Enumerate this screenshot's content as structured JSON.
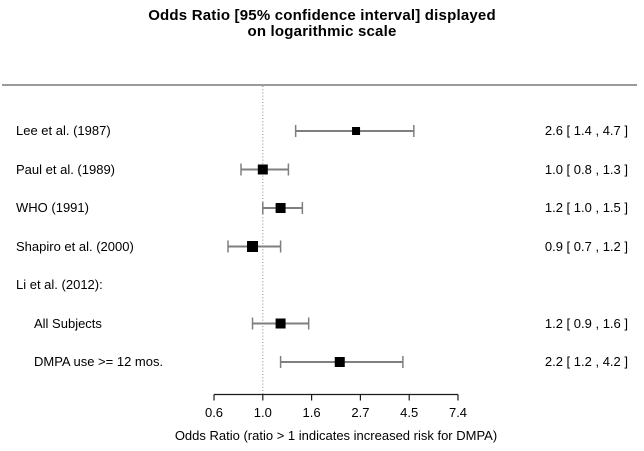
{
  "title": {
    "line1": "Odds Ratio [95% confidence interval] displayed",
    "line2": "on logarithmic scale"
  },
  "chart_data": {
    "type": "scatter",
    "subtype": "forest-plot",
    "scale": "log",
    "title": "Odds Ratio [95% confidence interval] displayed on logarithmic scale",
    "xlabel": "Odds Ratio (ratio > 1 indicates increased risk for DMPA)",
    "reference_line": 1.0,
    "x_range_ln": [
      -0.5,
      2.0
    ],
    "x_ticks": [
      {
        "label": "0.6",
        "ln": -0.5
      },
      {
        "label": "1.0",
        "ln": 0.0
      },
      {
        "label": "1.6",
        "ln": 0.5
      },
      {
        "label": "2.7",
        "ln": 1.0
      },
      {
        "label": "4.5",
        "ln": 1.5
      },
      {
        "label": "7.4",
        "ln": 2.0
      }
    ],
    "rows": [
      {
        "label": "Lee et al. (1987)",
        "indent": false,
        "header": false,
        "or": 2.6,
        "ci_low": 1.4,
        "ci_high": 4.7,
        "display": "2.6 [ 1.4 , 4.7 ]",
        "box": 8
      },
      {
        "label": "Paul et al. (1989)",
        "indent": false,
        "header": false,
        "or": 1.0,
        "ci_low": 0.8,
        "ci_high": 1.3,
        "display": "1.0 [ 0.8 , 1.3 ]",
        "box": 10
      },
      {
        "label": "WHO (1991)",
        "indent": false,
        "header": false,
        "or": 1.2,
        "ci_low": 1.0,
        "ci_high": 1.5,
        "display": "1.2 [ 1.0 , 1.5 ]",
        "box": 10
      },
      {
        "label": "Shapiro et al. (2000)",
        "indent": false,
        "header": false,
        "or": 0.9,
        "ci_low": 0.7,
        "ci_high": 1.2,
        "display": "0.9 [ 0.7 , 1.2 ]",
        "box": 11
      },
      {
        "label": "Li et al. (2012):",
        "indent": false,
        "header": true,
        "or": null,
        "ci_low": null,
        "ci_high": null,
        "display": "",
        "box": 0
      },
      {
        "label": "All Subjects",
        "indent": true,
        "header": false,
        "or": 1.2,
        "ci_low": 0.9,
        "ci_high": 1.6,
        "display": "1.2 [ 0.9 , 1.6 ]",
        "box": 10
      },
      {
        "label": "DMPA use >= 12 mos.",
        "indent": true,
        "header": false,
        "or": 2.2,
        "ci_low": 1.2,
        "ci_high": 4.2,
        "display": "2.2 [ 1.2 , 4.2 ]",
        "box": 10
      }
    ]
  },
  "colors": {
    "background": "#ffffff",
    "text": "#000000",
    "ci_line": "#7f7f7f",
    "marker": "#000000",
    "separator": "#9a9a9a",
    "reference_line": "#999999",
    "axis": "#1a1a1a"
  }
}
